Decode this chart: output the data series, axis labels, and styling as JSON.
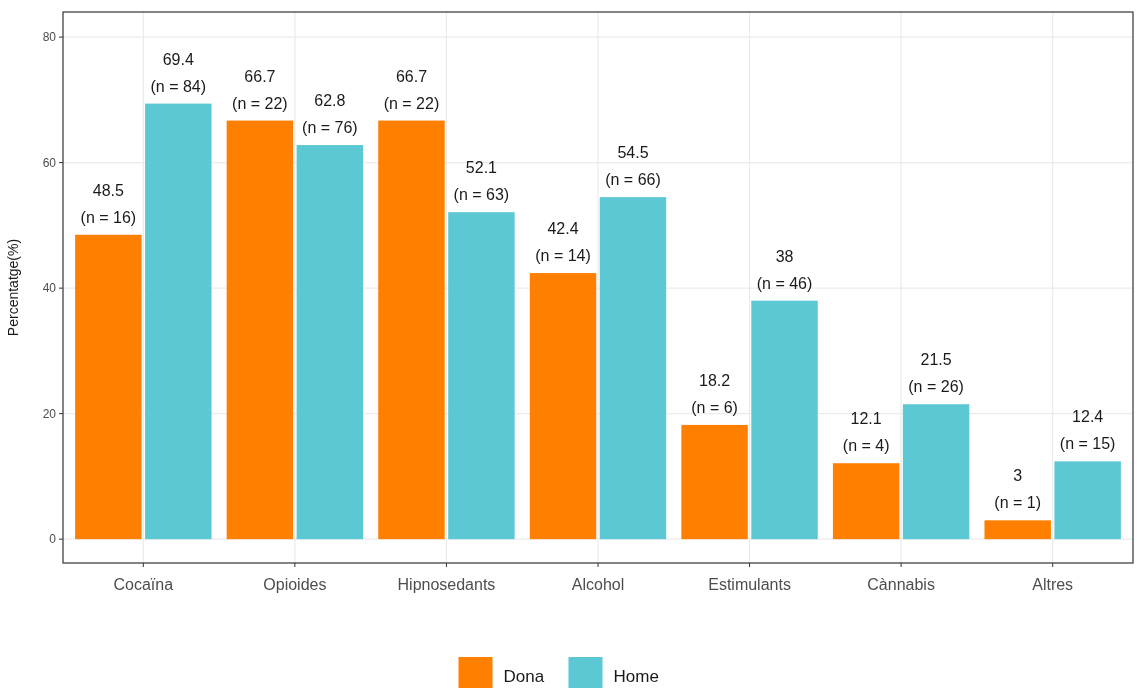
{
  "chart_data": {
    "type": "bar",
    "ylabel": "Percentatge(%)",
    "categories": [
      "Cocaïna",
      "Opioides",
      "Hipnosedants",
      "Alcohol",
      "Estimulants",
      "Cànnabis",
      "Altres"
    ],
    "series": [
      {
        "name": "Dona",
        "color": "#ff7f00",
        "values": [
          48.5,
          66.7,
          66.7,
          42.4,
          18.2,
          12.1,
          3
        ],
        "value_labels": [
          "48.5\n(n = 16)",
          "66.7\n(n = 22)",
          "66.7\n(n = 22)",
          "42.4\n(n = 14)",
          "18.2\n(n = 6)",
          "12.1\n(n = 4)",
          "3\n(n = 1)"
        ]
      },
      {
        "name": "Home",
        "color": "#5bc8d4",
        "values": [
          69.4,
          62.8,
          52.1,
          54.5,
          38,
          21.5,
          12.4
        ],
        "value_labels": [
          "69.4\n(n = 84)",
          "62.8\n(n = 76)",
          "52.1\n(n = 63)",
          "54.5\n(n = 66)",
          "38\n(n = 46)",
          "21.5\n(n = 26)",
          "12.4\n(n = 15)"
        ]
      }
    ],
    "ylim": [
      -3.8,
      84
    ],
    "yticks": [
      0,
      20,
      40,
      60,
      80
    ],
    "grid": true,
    "legend": "bottom"
  }
}
